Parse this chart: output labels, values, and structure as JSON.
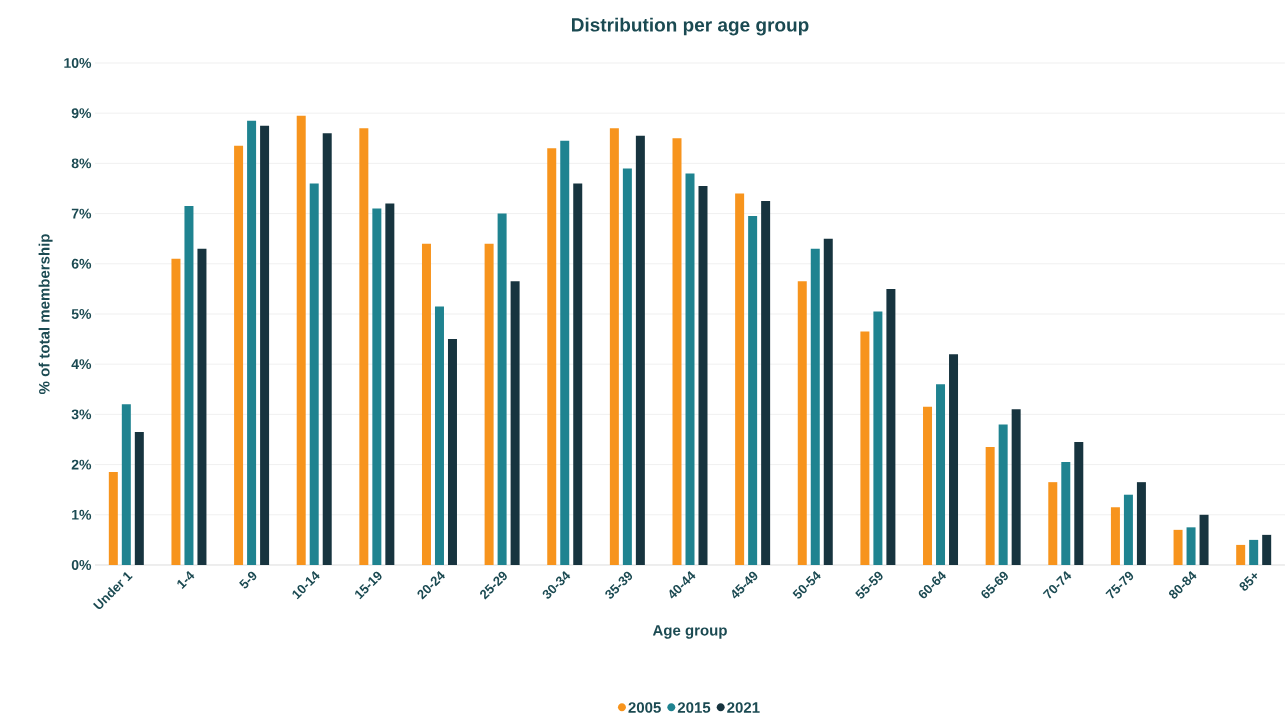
{
  "chart_data": {
    "type": "bar",
    "title": "Distribution per age group",
    "xlabel": "Age group",
    "ylabel": "% of total membership",
    "categories": [
      "Under 1",
      "1-4",
      "5-9",
      "10-14",
      "15-19",
      "20-24",
      "25-29",
      "30-34",
      "35-39",
      "40-44",
      "45-49",
      "50-54",
      "55-59",
      "60-64",
      "65-69",
      "70-74",
      "75-79",
      "80-84",
      "85+"
    ],
    "series": [
      {
        "name": "2005",
        "color": "#f7941d",
        "values": [
          1.85,
          6.1,
          8.35,
          8.95,
          8.7,
          6.4,
          6.4,
          8.3,
          8.7,
          8.5,
          7.4,
          5.65,
          4.65,
          3.15,
          2.35,
          1.65,
          1.15,
          0.7,
          0.4
        ]
      },
      {
        "name": "2015",
        "color": "#1f8390",
        "values": [
          3.2,
          7.15,
          8.85,
          7.6,
          7.1,
          5.15,
          7.0,
          8.45,
          7.9,
          7.8,
          6.95,
          6.3,
          5.05,
          3.6,
          2.8,
          2.05,
          1.4,
          0.75,
          0.5
        ]
      },
      {
        "name": "2021",
        "color": "#17343f",
        "values": [
          2.65,
          6.3,
          8.75,
          8.6,
          7.2,
          4.5,
          5.65,
          7.6,
          8.55,
          7.55,
          7.25,
          6.5,
          5.5,
          4.2,
          3.1,
          2.45,
          1.65,
          1.0,
          0.6
        ]
      }
    ],
    "ylim": [
      0,
      10
    ],
    "yticks": [
      {
        "value": 0,
        "label": "0%"
      },
      {
        "value": 1,
        "label": "1%"
      },
      {
        "value": 2,
        "label": "2%"
      },
      {
        "value": 3,
        "label": "3%"
      },
      {
        "value": 4,
        "label": "4%"
      },
      {
        "value": 5,
        "label": "5%"
      },
      {
        "value": 6,
        "label": "6%"
      },
      {
        "value": 7,
        "label": "7%"
      },
      {
        "value": 8,
        "label": "8%"
      },
      {
        "value": 9,
        "label": "9%"
      },
      {
        "value": 10,
        "label": "10%"
      }
    ],
    "grid": "y",
    "legend": "bottom"
  }
}
